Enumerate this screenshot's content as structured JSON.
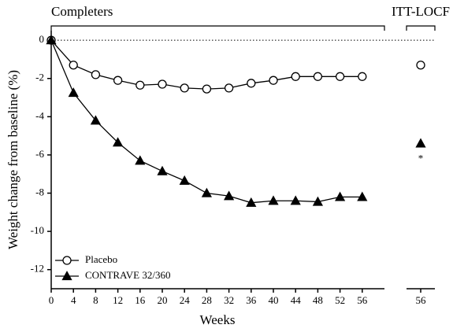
{
  "chart_data": [
    {
      "type": "line",
      "title": "Completers",
      "x_label": "Weeks",
      "y_label": "Weight change from baseline (%)",
      "x": [
        0,
        4,
        8,
        12,
        16,
        20,
        24,
        28,
        32,
        36,
        40,
        44,
        48,
        52,
        56
      ],
      "xlim": [
        0,
        60
      ],
      "xticks": [
        0,
        4,
        8,
        12,
        16,
        20,
        24,
        28,
        32,
        36,
        40,
        44,
        48,
        52,
        56
      ],
      "ylim": [
        -13,
        0.5
      ],
      "yticks": [
        0,
        -2,
        -4,
        -6,
        -8,
        -10,
        -12
      ],
      "reference_line": 0,
      "legend": "lower left",
      "series": [
        {
          "name": "Placebo",
          "color": "#000000",
          "marker": "circle",
          "values": [
            0,
            -1.3,
            -1.8,
            -2.1,
            -2.35,
            -2.3,
            -2.5,
            -2.55,
            -2.5,
            -2.25,
            -2.1,
            -1.9,
            -1.9,
            -1.9,
            -1.9
          ]
        },
        {
          "name": "CONTRAVE 32/360",
          "color": "#000000",
          "marker": "triangle",
          "values": [
            0,
            -2.75,
            -4.2,
            -5.35,
            -6.3,
            -6.85,
            -7.35,
            -8.0,
            -8.15,
            -8.5,
            -8.4,
            -8.4,
            -8.45,
            -8.2,
            -8.2
          ]
        }
      ]
    },
    {
      "type": "scatter",
      "title": "ITT-LOCF",
      "x": [
        56
      ],
      "xlim": [
        53.5,
        58.5
      ],
      "xticks": [
        56
      ],
      "series": [
        {
          "color": "#000000",
          "marker": "circle",
          "values": [
            -1.3
          ]
        },
        {
          "color": "#000000",
          "marker": "triangle",
          "values": [
            -5.4
          ],
          "annotation": "*"
        }
      ]
    }
  ]
}
